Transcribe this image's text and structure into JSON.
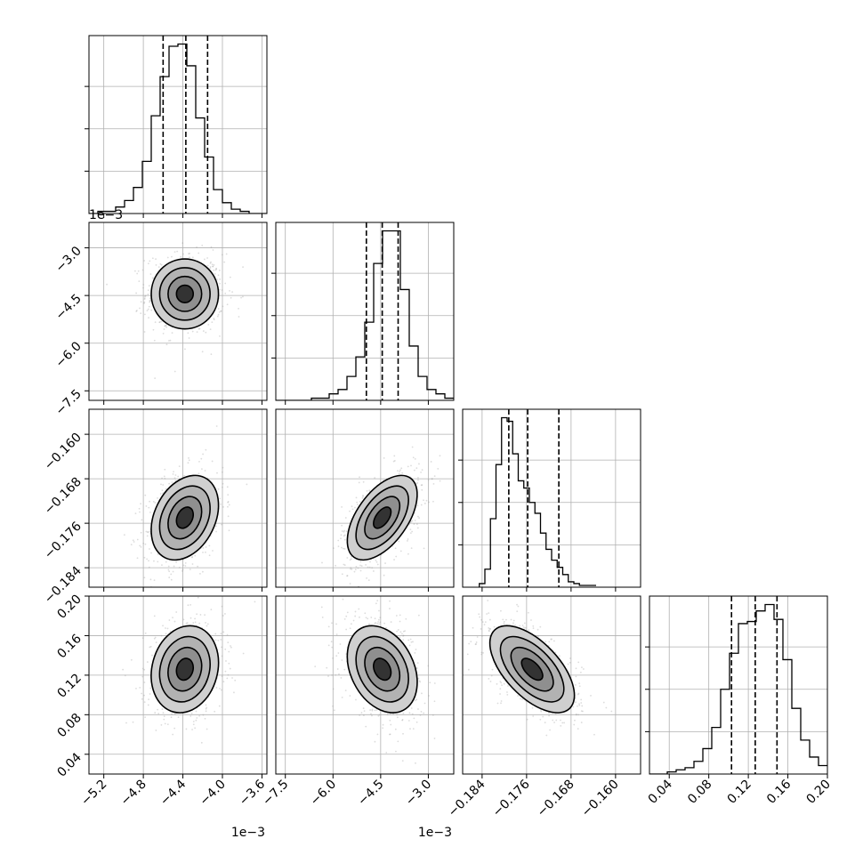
{
  "chart_data": {
    "type": "corner",
    "n_params": 4,
    "params": [
      {
        "id": "p0",
        "range": [
          -5.35,
          -3.55
        ],
        "ticks": [
          -5.2,
          -4.8,
          -4.4,
          -4.0,
          -3.6
        ],
        "tick_labels": [
          "−5.2",
          "−4.8",
          "−4.4",
          "−4.0",
          "−3.6"
        ],
        "offset_label": "1e−3",
        "quantiles": [
          -4.6,
          -4.37,
          -4.15
        ],
        "hist_bins": {
          "start": -5.35,
          "width": 0.09,
          "counts": [
            0,
            1,
            1,
            3,
            6,
            12,
            24,
            45,
            63,
            77,
            78,
            68,
            44,
            26,
            11,
            5,
            2,
            1,
            0,
            0
          ]
        }
      },
      {
        "id": "p1",
        "range": [
          -7.8,
          -2.2
        ],
        "ticks": [
          -7.5,
          -6.0,
          -4.5,
          -3.0
        ],
        "tick_labels": [
          "−7.5",
          "−6.0",
          "−4.5",
          "−3.0"
        ],
        "offset_label": "1e−3",
        "quantiles": [
          -4.95,
          -4.45,
          -3.95
        ],
        "hist_bins": {
          "start": -7.8,
          "width": 0.28,
          "counts": [
            0,
            0,
            0,
            0,
            1,
            1,
            3,
            5,
            11,
            20,
            36,
            63,
            78,
            78,
            51,
            25,
            11,
            5,
            3,
            1
          ]
        }
      },
      {
        "id": "p2",
        "range": [
          -0.1875,
          -0.1555
        ],
        "ticks": [
          -0.184,
          -0.176,
          -0.168,
          -0.16
        ],
        "tick_labels": [
          "−0.184",
          "−0.176",
          "−0.168",
          "−0.160"
        ],
        "quantiles": [
          -0.1792,
          -0.1758,
          -0.1702
        ],
        "hist_bins": {
          "start": -0.1845,
          "width": 0.001,
          "counts": [
            2,
            10,
            38,
            68,
            94,
            92,
            74,
            59,
            55,
            47,
            41,
            30,
            21,
            15,
            11,
            7,
            3,
            2,
            1,
            1,
            1
          ]
        }
      },
      {
        "id": "p3",
        "range": [
          0.02,
          0.2
        ],
        "ticks": [
          0.04,
          0.08,
          0.12,
          0.16,
          0.2
        ],
        "tick_labels": [
          "0.04",
          "0.08",
          "0.12",
          "0.16",
          "0.20"
        ],
        "quantiles": [
          0.103,
          0.127,
          0.149
        ],
        "hist_bins": {
          "start": 0.02,
          "width": 0.009,
          "counts": [
            0,
            0,
            1,
            2,
            3,
            6,
            12,
            22,
            40,
            57,
            71,
            72,
            77,
            80,
            73,
            54,
            31,
            16,
            8,
            4
          ]
        }
      }
    ],
    "bivariate": [
      {
        "x": 0,
        "y": 1,
        "mean": [
          -4.38,
          -4.45
        ],
        "sd": [
          0.17,
          0.55
        ],
        "rho": 0.0
      },
      {
        "x": 0,
        "y": 2,
        "mean": [
          -4.38,
          -0.175
        ],
        "sd": [
          0.17,
          0.0038
        ],
        "rho": 0.3
      },
      {
        "x": 1,
        "y": 2,
        "mean": [
          -4.45,
          -0.175
        ],
        "sd": [
          0.55,
          0.0038
        ],
        "rho": 0.55
      },
      {
        "x": 0,
        "y": 3,
        "mean": [
          -4.38,
          0.126
        ],
        "sd": [
          0.17,
          0.022
        ],
        "rho": 0.15
      },
      {
        "x": 1,
        "y": 3,
        "mean": [
          -4.45,
          0.126
        ],
        "sd": [
          0.55,
          0.022
        ],
        "rho": -0.3
      },
      {
        "x": 2,
        "y": 3,
        "mean": [
          -0.175,
          0.126
        ],
        "sd": [
          0.0038,
          0.022
        ],
        "rho": -0.6
      }
    ],
    "grid": true,
    "contour_levels_sigma": [
      0.5,
      1.0,
      1.5,
      2.0
    ],
    "quantile_line_style": "dashed"
  }
}
